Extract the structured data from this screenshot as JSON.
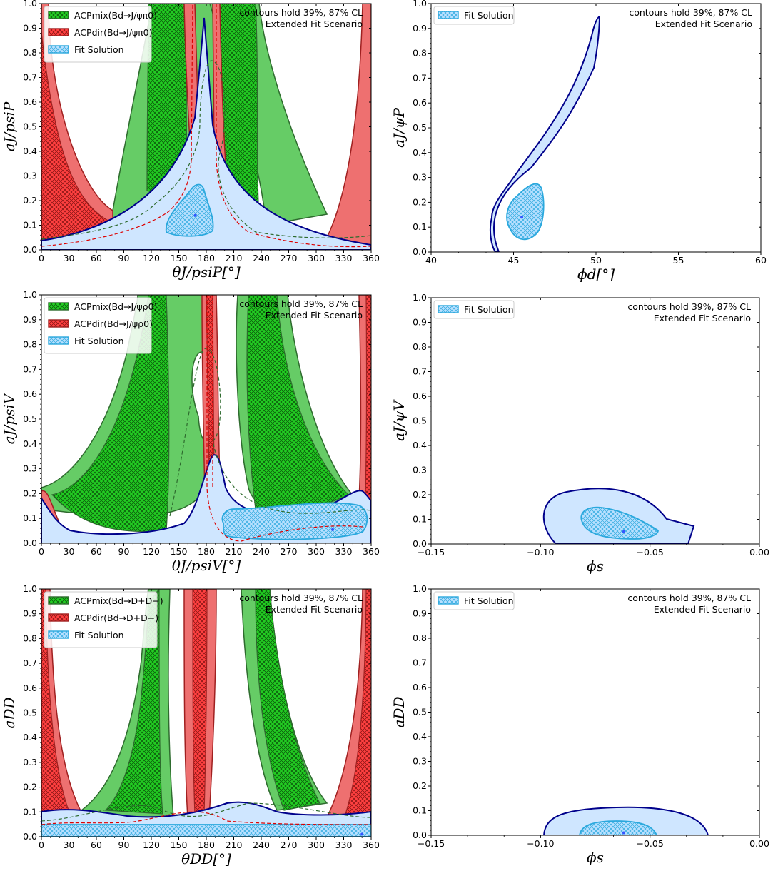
{
  "chart_data": [
    {
      "id": "p1",
      "type": "area",
      "xlim": [
        0,
        360
      ],
      "ylim": [
        0,
        1
      ],
      "xticks": [
        "0",
        "30",
        "60",
        "90",
        "120",
        "150",
        "180",
        "210",
        "240",
        "270",
        "300",
        "330",
        "360"
      ],
      "yticks": [
        "0.0",
        "0.1",
        "0.2",
        "0.3",
        "0.4",
        "0.5",
        "0.6",
        "0.7",
        "0.8",
        "0.9",
        "1.0"
      ],
      "xlabel": "θJ/psiP[°]",
      "ylabel": "aJ/psiP",
      "annotations": [
        "contours hold 39%, 87% CL",
        "Extended Fit Scenario"
      ],
      "legend": [
        "ACPmix(Bd→J/ψπ0)",
        "ACPdir(Bd→J/ψπ0)",
        "Fit Solution"
      ],
      "legend_loc": "upper-left",
      "best_fit": [
        168,
        0.14
      ]
    },
    {
      "id": "p2",
      "type": "area",
      "xlim": [
        40,
        60
      ],
      "ylim": [
        0,
        1
      ],
      "xticks": [
        "40",
        "45",
        "50",
        "55",
        "60"
      ],
      "yticks": [
        "0.0",
        "0.1",
        "0.2",
        "0.3",
        "0.4",
        "0.5",
        "0.6",
        "0.7",
        "0.8",
        "0.9",
        "1.0"
      ],
      "xlabel": "ϕd[°]",
      "ylabel": "aJ/ψP",
      "annotations": [
        "contours hold 39%, 87% CL",
        "Extended Fit Scenario"
      ],
      "legend": [
        "Fit Solution"
      ],
      "legend_loc": "upper-left",
      "best_fit": [
        45.5,
        0.14
      ]
    },
    {
      "id": "p3",
      "type": "area",
      "xlim": [
        0,
        360
      ],
      "ylim": [
        0,
        1
      ],
      "xticks": [
        "0",
        "30",
        "60",
        "90",
        "120",
        "150",
        "180",
        "210",
        "240",
        "270",
        "300",
        "330",
        "360"
      ],
      "yticks": [
        "0.0",
        "0.1",
        "0.2",
        "0.3",
        "0.4",
        "0.5",
        "0.6",
        "0.7",
        "0.8",
        "0.9",
        "1.0"
      ],
      "xlabel": "θJ/psiV[°]",
      "ylabel": "aJ/psiV",
      "annotations": [
        "contours hold 39%, 87% CL",
        "Extended Fit Scenario"
      ],
      "legend": [
        "ACPmix(Bd→J/ψρ0)",
        "ACPdir(Bd→J/ψρ0)",
        "Fit Solution"
      ],
      "legend_loc": "upper-left",
      "best_fit": [
        318,
        0.055
      ]
    },
    {
      "id": "p4",
      "type": "area",
      "xlim": [
        -0.15,
        0.0
      ],
      "ylim": [
        0,
        1
      ],
      "xticks": [
        "−0.15",
        "−0.10",
        "−0.05",
        "0.00"
      ],
      "yticks": [
        "0.0",
        "0.1",
        "0.2",
        "0.3",
        "0.4",
        "0.5",
        "0.6",
        "0.7",
        "0.8",
        "0.9",
        "1.0"
      ],
      "xlabel": "ϕs",
      "ylabel": "aJ/ψV",
      "annotations": [
        "contours hold 39%, 87% CL",
        "Extended Fit Scenario"
      ],
      "legend": [
        "Fit Solution"
      ],
      "legend_loc": "upper-left",
      "best_fit": [
        -0.062,
        0.05
      ]
    },
    {
      "id": "p5",
      "type": "area",
      "xlim": [
        0,
        360
      ],
      "ylim": [
        0,
        1
      ],
      "xticks": [
        "0",
        "30",
        "60",
        "90",
        "120",
        "150",
        "180",
        "210",
        "240",
        "270",
        "300",
        "330",
        "360"
      ],
      "yticks": [
        "0.0",
        "0.1",
        "0.2",
        "0.3",
        "0.4",
        "0.5",
        "0.6",
        "0.7",
        "0.8",
        "0.9",
        "1.0"
      ],
      "xlabel": "θDD[°]",
      "ylabel": "aDD",
      "annotations": [
        "contours hold 39%, 87% CL",
        "Extended Fit Scenario"
      ],
      "legend": [
        "ACPmix(Bd→D+D−)",
        "ACPdir(Bd→D+D−)",
        "Fit Solution"
      ],
      "legend_loc": "upper-left",
      "best_fit": [
        350,
        0.01
      ]
    },
    {
      "id": "p6",
      "type": "area",
      "xlim": [
        -0.15,
        0.0
      ],
      "ylim": [
        0,
        1
      ],
      "xticks": [
        "−0.15",
        "−0.10",
        "−0.05",
        "0.00"
      ],
      "yticks": [
        "0.0",
        "0.1",
        "0.2",
        "0.3",
        "0.4",
        "0.5",
        "0.6",
        "0.7",
        "0.8",
        "0.9",
        "1.0"
      ],
      "xlabel": "ϕs",
      "ylabel": "aDD",
      "annotations": [
        "contours hold 39%, 87% CL",
        "Extended Fit Scenario"
      ],
      "legend": [
        "Fit Solution"
      ],
      "legend_loc": "upper-left",
      "best_fit": [
        -0.062,
        0.01
      ]
    }
  ]
}
